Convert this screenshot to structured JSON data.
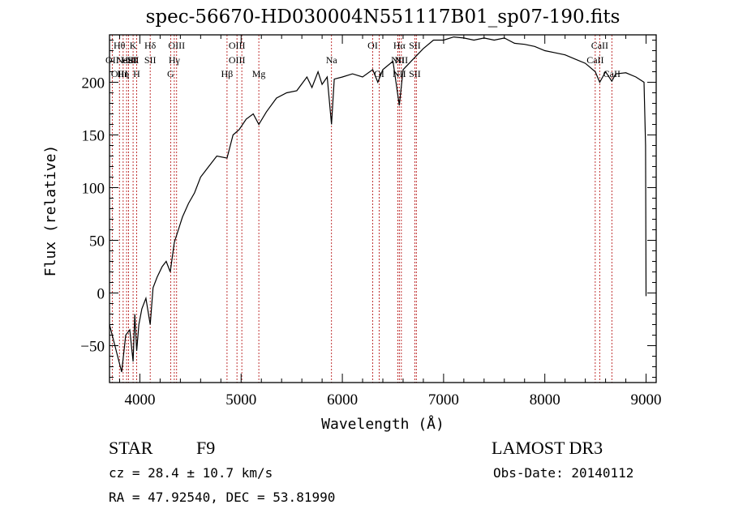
{
  "chart_data": {
    "type": "line",
    "title": "spec-56670-HD030004N551117B01_sp07-190.fits",
    "xlabel": "Wavelength (Å)",
    "ylabel": "Flux (relative)",
    "xlim": [
      3700,
      9100
    ],
    "ylim": [
      -85,
      245
    ],
    "x_ticks": [
      4000,
      5000,
      6000,
      7000,
      8000,
      9000
    ],
    "y_ticks": [
      -50,
      0,
      50,
      100,
      150,
      200
    ],
    "series": [
      {
        "x": [
          3700,
          3740,
          3780,
          3820,
          3860,
          3900,
          3933,
          3950,
          3968,
          3990,
          4020,
          4060,
          4102,
          4130,
          4170,
          4220,
          4260,
          4300,
          4340,
          4380,
          4420,
          4480,
          4540,
          4600,
          4680,
          4760,
          4861,
          4920,
          4980,
          5050,
          5120,
          5175,
          5250,
          5350,
          5450,
          5550,
          5650,
          5700,
          5760,
          5800,
          5850,
          5893,
          5920,
          6000,
          6100,
          6200,
          6300,
          6350,
          6400,
          6500,
          6563,
          6600,
          6700,
          6800,
          6900,
          7000,
          7100,
          7200,
          7300,
          7400,
          7500,
          7600,
          7700,
          7800,
          7900,
          8000,
          8100,
          8200,
          8300,
          8400,
          8498,
          8542,
          8600,
          8662,
          8700,
          8800,
          8900,
          8980,
          8995,
          9000
        ],
        "values": [
          -30,
          -45,
          -60,
          -75,
          -40,
          -35,
          -65,
          -20,
          -55,
          -30,
          -15,
          -5,
          -30,
          5,
          15,
          25,
          30,
          20,
          48,
          60,
          72,
          85,
          95,
          110,
          120,
          130,
          128,
          150,
          155,
          165,
          170,
          160,
          172,
          185,
          190,
          192,
          205,
          195,
          210,
          198,
          205,
          160,
          203,
          205,
          208,
          205,
          212,
          200,
          212,
          220,
          178,
          212,
          222,
          232,
          240,
          240,
          243,
          242,
          240,
          242,
          240,
          242,
          237,
          236,
          234,
          230,
          228,
          226,
          222,
          218,
          210,
          200,
          210,
          201,
          208,
          209,
          205,
          200,
          140,
          -3
        ]
      }
    ],
    "line_markers": [
      {
        "wavelength": 3727,
        "labels": [
          "",
          "OII"
        ]
      },
      {
        "wavelength": 3798,
        "labels": [
          "Hθ",
          "",
          "OIII"
        ]
      },
      {
        "wavelength": 3835,
        "labels": [
          "",
          "",
          "Hη"
        ]
      },
      {
        "wavelength": 3869,
        "labels": [
          "",
          "NeIII"
        ]
      },
      {
        "wavelength": 3889,
        "labels": [
          "",
          "HeI"
        ]
      },
      {
        "wavelength": 3933,
        "labels": [
          "K",
          "SII"
        ]
      },
      {
        "wavelength": 3968,
        "labels": [
          "",
          "",
          "H"
        ]
      },
      {
        "wavelength": 4102,
        "labels": [
          "Hδ",
          "SII"
        ]
      },
      {
        "wavelength": 4304,
        "labels": [
          "",
          "",
          "G"
        ]
      },
      {
        "wavelength": 4340,
        "labels": [
          "",
          "Hγ"
        ]
      },
      {
        "wavelength": 4363,
        "labels": [
          "OIII"
        ]
      },
      {
        "wavelength": 4861,
        "labels": [
          "",
          "",
          "Hβ"
        ]
      },
      {
        "wavelength": 4959,
        "labels": [
          "OIII",
          "OIII"
        ]
      },
      {
        "wavelength": 5007,
        "labels": []
      },
      {
        "wavelength": 5175,
        "labels": [
          "",
          "",
          "Mg"
        ]
      },
      {
        "wavelength": 5893,
        "labels": [
          "",
          "Na"
        ]
      },
      {
        "wavelength": 6300,
        "labels": [
          "OI"
        ]
      },
      {
        "wavelength": 6364,
        "labels": [
          "",
          "",
          "OI"
        ]
      },
      {
        "wavelength": 6548,
        "labels": [
          "",
          "NII"
        ]
      },
      {
        "wavelength": 6563,
        "labels": [
          "Hα",
          "",
          "NII"
        ]
      },
      {
        "wavelength": 6583,
        "labels": [
          "",
          "NII"
        ]
      },
      {
        "wavelength": 6716,
        "labels": [
          "SII",
          "",
          "SII"
        ]
      },
      {
        "wavelength": 6731,
        "labels": []
      },
      {
        "wavelength": 8498,
        "labels": [
          "",
          "CaII"
        ]
      },
      {
        "wavelength": 8542,
        "labels": [
          "CaII"
        ]
      },
      {
        "wavelength": 8662,
        "labels": [
          "",
          "",
          "CaII"
        ]
      }
    ]
  },
  "info": {
    "class": "STAR",
    "subclass": "F9",
    "survey": "LAMOST DR3",
    "cz": "cz = 28.4 ± 10.7 km/s",
    "obs_date": "Obs-Date: 20140112",
    "coords": "RA =  47.92540, DEC =  53.81990"
  }
}
